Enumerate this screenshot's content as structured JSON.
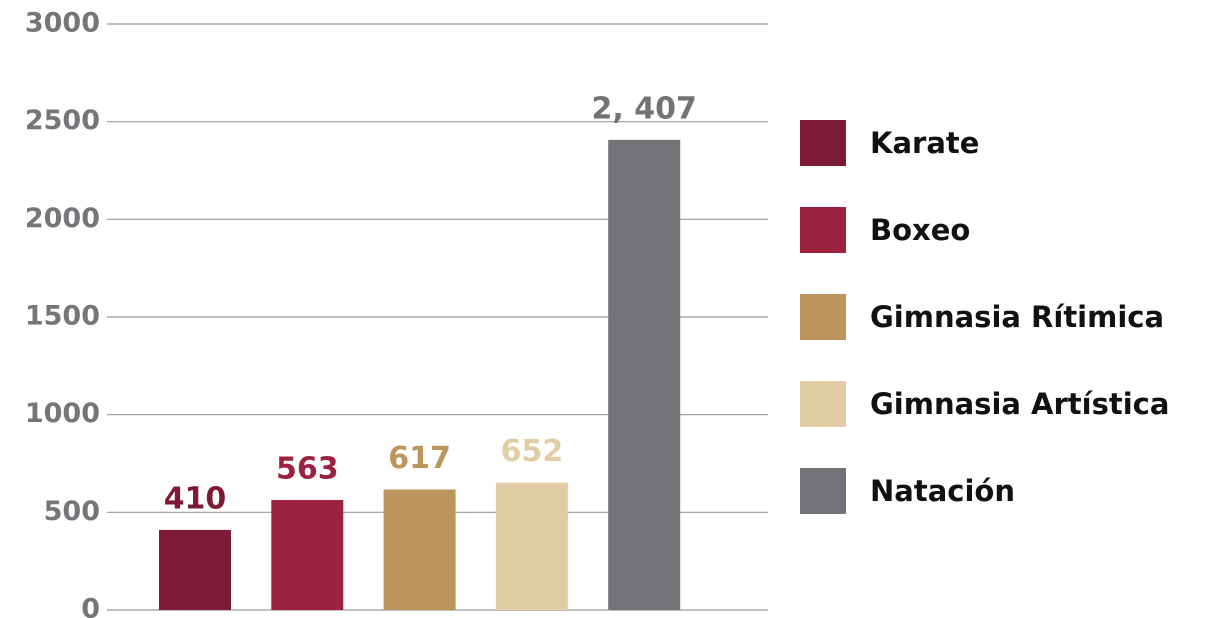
{
  "chart_data": {
    "type": "bar",
    "series": [
      {
        "name": "Karate",
        "color": "#7d1a35",
        "values": [
          410
        ]
      },
      {
        "name": "Boxeo",
        "color": "#9b2340",
        "values": [
          563
        ]
      },
      {
        "name": "Gimnasia Rítimica",
        "color": "#bc955c",
        "values": [
          617
        ]
      },
      {
        "name": "Gimnasia Artística",
        "color": "#e1cda3",
        "values": [
          652
        ]
      },
      {
        "name": "Natación",
        "color": "#737276",
        "values": [
          2407
        ],
        "value_labels": [
          "2, 407"
        ]
      }
    ],
    "ylim": [
      0,
      3000
    ],
    "yticks": [
      0,
      500,
      1000,
      1500,
      2000,
      2500,
      3000
    ],
    "grid": true,
    "legend": "right"
  }
}
